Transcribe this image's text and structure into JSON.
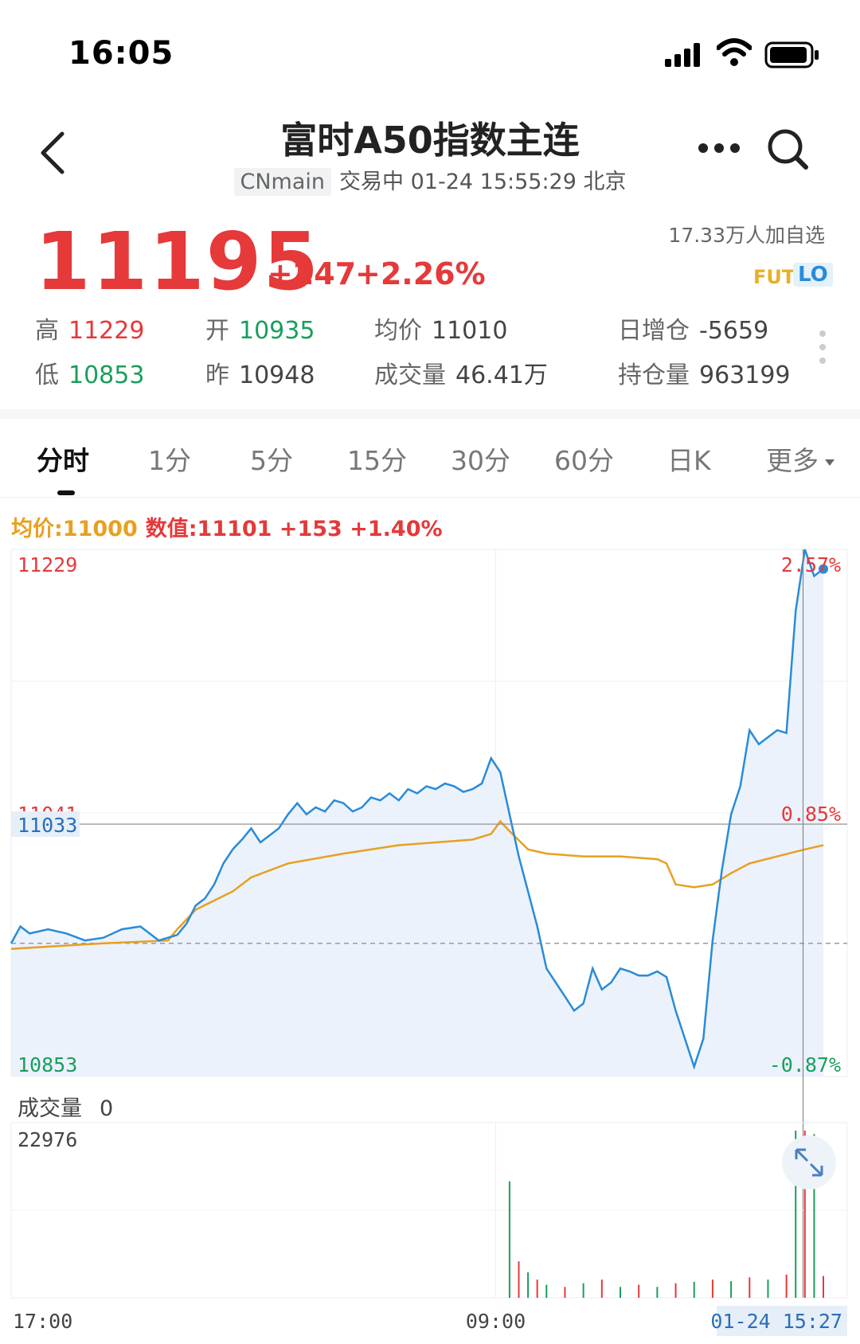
{
  "status_bar": {
    "time": "16:05"
  },
  "header": {
    "title": "富时A50指数主连",
    "code": "CNmain",
    "trade_status": "交易中 01-24 15:55:29 北京"
  },
  "quote": {
    "price": "11195",
    "change": "+247",
    "change_pct": "+2.26%",
    "watchers": "17.33万人加自选",
    "badge_fut": "FUT",
    "badge_lo": "LO",
    "stats": {
      "high_label": "高",
      "high": "11229",
      "open_label": "开",
      "open": "10935",
      "avg_label": "均价",
      "avg": "11010",
      "oi_change_label": "日增仓",
      "oi_change": "-5659",
      "low_label": "低",
      "low": "10853",
      "prev_label": "昨",
      "prev": "10948",
      "volume_label": "成交量",
      "volume": "46.41万",
      "oi_label": "持仓量",
      "oi": "963199"
    }
  },
  "tabs": [
    "分时",
    "1分",
    "5分",
    "15分",
    "30分",
    "60分",
    "日K",
    "更多"
  ],
  "active_tab": "分时",
  "chart_info": {
    "avg": "均价:11000",
    "value": "数值:11101  +153  +1.40%"
  },
  "colors": {
    "up": "#e5393a",
    "down": "#1a9e5c",
    "price_line": "#2a8bd8",
    "avg_line": "#e8a020"
  },
  "chart_data": {
    "type": "line",
    "y_ticks_left": [
      "11229",
      "11041",
      "11033",
      "10853"
    ],
    "y_ticks_right": [
      "2.57%",
      "0.85%",
      "-0.87%"
    ],
    "x_ticks": [
      "17:00",
      "09:00",
      "01-24 15:27"
    ],
    "ylim": [
      10853,
      11229
    ],
    "prev_close": 10948,
    "crosshair_value": "11033",
    "series": [
      {
        "role": "price",
        "points": [
          [
            0,
            10948
          ],
          [
            1,
            10960
          ],
          [
            2,
            10955
          ],
          [
            4,
            10958
          ],
          [
            6,
            10955
          ],
          [
            8,
            10950
          ],
          [
            10,
            10952
          ],
          [
            12,
            10958
          ],
          [
            14,
            10960
          ],
          [
            16,
            10950
          ],
          [
            18,
            10954
          ],
          [
            19,
            10962
          ],
          [
            20,
            10975
          ],
          [
            21,
            10980
          ],
          [
            22,
            10990
          ],
          [
            23,
            11005
          ],
          [
            24,
            11015
          ],
          [
            25,
            11022
          ],
          [
            26,
            11030
          ],
          [
            27,
            11020
          ],
          [
            28,
            11025
          ],
          [
            29,
            11030
          ],
          [
            30,
            11040
          ],
          [
            31,
            11048
          ],
          [
            32,
            11040
          ],
          [
            33,
            11045
          ],
          [
            34,
            11042
          ],
          [
            35,
            11050
          ],
          [
            36,
            11048
          ],
          [
            37,
            11042
          ],
          [
            38,
            11045
          ],
          [
            39,
            11052
          ],
          [
            40,
            11050
          ],
          [
            41,
            11055
          ],
          [
            42,
            11050
          ],
          [
            43,
            11058
          ],
          [
            44,
            11055
          ],
          [
            45,
            11060
          ],
          [
            46,
            11058
          ],
          [
            47,
            11062
          ],
          [
            48,
            11060
          ],
          [
            49,
            11056
          ],
          [
            50,
            11058
          ],
          [
            51,
            11062
          ],
          [
            52,
            11080
          ],
          [
            53,
            11070
          ],
          [
            54,
            11040
          ],
          [
            55,
            11010
          ],
          [
            56,
            10985
          ],
          [
            57,
            10960
          ],
          [
            58,
            10930
          ],
          [
            59,
            10920
          ],
          [
            60,
            10910
          ],
          [
            61,
            10900
          ],
          [
            62,
            10905
          ],
          [
            63,
            10930
          ],
          [
            64,
            10915
          ],
          [
            65,
            10920
          ],
          [
            66,
            10930
          ],
          [
            67,
            10928
          ],
          [
            68,
            10925
          ],
          [
            69,
            10925
          ],
          [
            70,
            10928
          ],
          [
            71,
            10924
          ],
          [
            72,
            10900
          ],
          [
            73,
            10880
          ],
          [
            74,
            10860
          ],
          [
            75,
            10880
          ],
          [
            76,
            10950
          ],
          [
            77,
            11000
          ],
          [
            78,
            11040
          ],
          [
            79,
            11060
          ],
          [
            80,
            11100
          ],
          [
            81,
            11090
          ],
          [
            82,
            11095
          ],
          [
            83,
            11100
          ],
          [
            84,
            11098
          ],
          [
            85,
            11185
          ],
          [
            86,
            11229
          ],
          [
            87,
            11210
          ],
          [
            88,
            11215
          ]
        ]
      },
      {
        "role": "average",
        "points": [
          [
            0,
            10944
          ],
          [
            10,
            10948
          ],
          [
            17,
            10950
          ],
          [
            18,
            10958
          ],
          [
            20,
            10972
          ],
          [
            24,
            10985
          ],
          [
            26,
            10995
          ],
          [
            30,
            11005
          ],
          [
            36,
            11012
          ],
          [
            42,
            11018
          ],
          [
            50,
            11022
          ],
          [
            52,
            11026
          ],
          [
            53,
            11035
          ],
          [
            54,
            11028
          ],
          [
            56,
            11015
          ],
          [
            58,
            11012
          ],
          [
            62,
            11010
          ],
          [
            66,
            11010
          ],
          [
            70,
            11008
          ],
          [
            71,
            11005
          ],
          [
            72,
            10990
          ],
          [
            74,
            10988
          ],
          [
            76,
            10990
          ],
          [
            78,
            10998
          ],
          [
            80,
            11005
          ],
          [
            83,
            11010
          ],
          [
            86,
            11015
          ],
          [
            88,
            11018
          ]
        ]
      }
    ],
    "volume": {
      "label": "成交量",
      "current": "0",
      "ymax_label": "22976",
      "ylim": [
        0,
        22976
      ],
      "spikes": [
        [
          54,
          16000
        ],
        [
          55,
          5000
        ],
        [
          56,
          3500
        ],
        [
          57,
          2500
        ],
        [
          58,
          1800
        ],
        [
          60,
          1500
        ],
        [
          62,
          2000
        ],
        [
          64,
          2500
        ],
        [
          66,
          1500
        ],
        [
          68,
          1800
        ],
        [
          70,
          1500
        ],
        [
          72,
          2000
        ],
        [
          74,
          2200
        ],
        [
          76,
          2500
        ],
        [
          78,
          2300
        ],
        [
          80,
          2800
        ],
        [
          82,
          2500
        ],
        [
          84,
          3200
        ],
        [
          85,
          22976
        ],
        [
          86,
          22976
        ],
        [
          87,
          22500
        ],
        [
          88,
          3000
        ]
      ]
    }
  }
}
